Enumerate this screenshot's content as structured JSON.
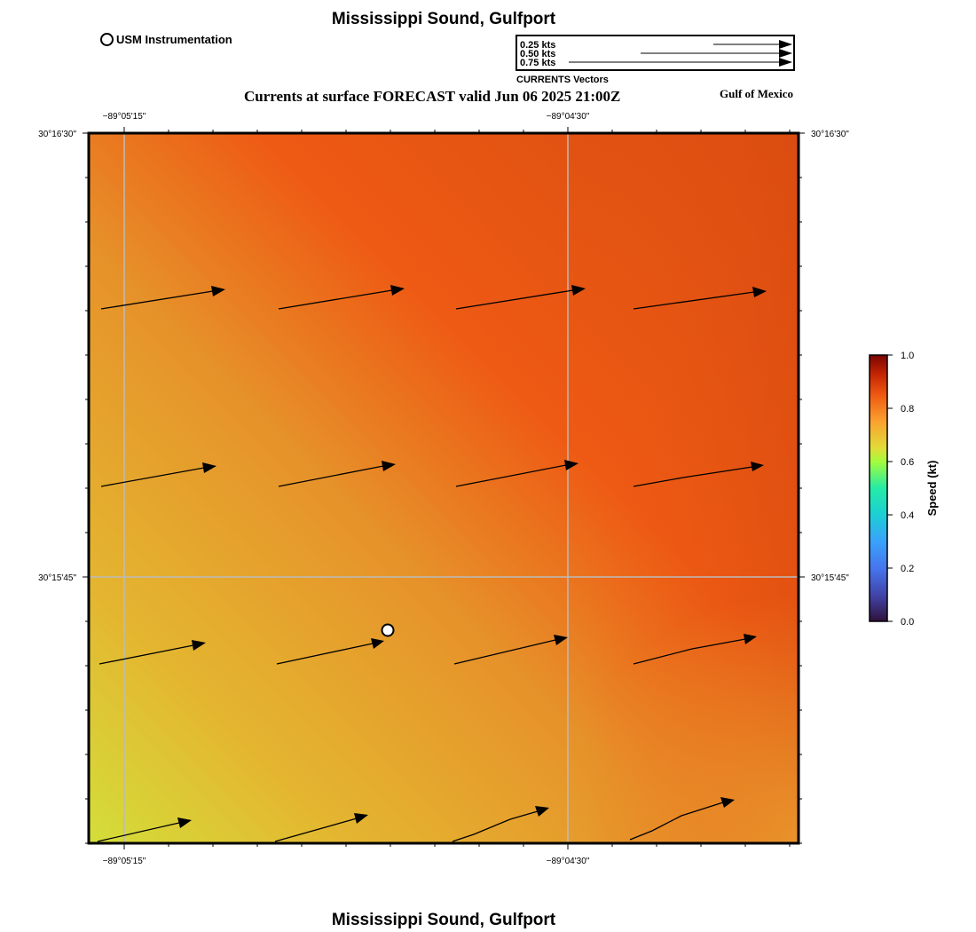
{
  "map": {
    "title": "Mississippi Sound, Gulfport",
    "subtitle": "Currents at surface FORECAST valid Jun 06 2025 21:00Z",
    "region_label": "Gulf of Mexico",
    "station_legend": "USM Instrumentation",
    "footer_title": "Mississippi Sound, Gulfport"
  },
  "vector_key": {
    "title": "CURRENTS Vectors",
    "entries": [
      "0.25 kts",
      "0.50 kts",
      "0.75 kts"
    ]
  },
  "axes": {
    "lon_labels": [
      "−89°05'15\"",
      "−89°04'30\""
    ],
    "lat_labels": [
      "30°16'30\"",
      "30°15'45\""
    ]
  },
  "colorbar": {
    "title": "Speed (kt)",
    "min": 0.0,
    "max": 1.0,
    "tick_labels": [
      "0.0",
      "0.2",
      "0.4",
      "0.6",
      "0.8",
      "1.0"
    ]
  },
  "colors": {
    "field_dark": "#d84c10",
    "field_orange": "#ee5a14",
    "field_amber": "#e6922a",
    "field_gold": "#e4b630",
    "field_yellow": "#d4de3a",
    "grid": "#bbbbbb"
  }
}
